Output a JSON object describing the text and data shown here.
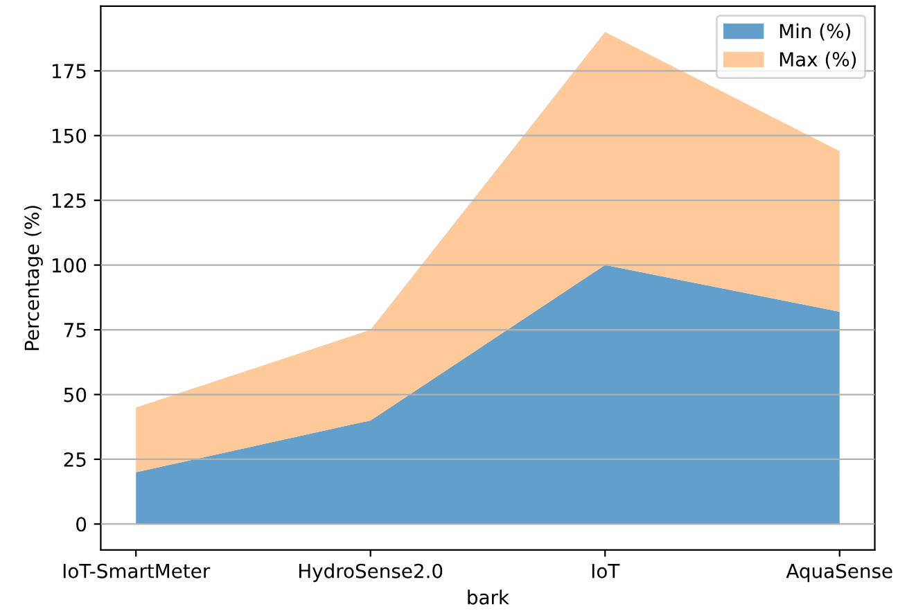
{
  "chart_data": {
    "type": "area",
    "stacked": true,
    "xlabel": "bark",
    "ylabel": "Percentage (%)",
    "categories": [
      "IoT-SmartMeter",
      "HydroSense2.0",
      "IoT",
      "AquaSense"
    ],
    "series": [
      {
        "name": "Min (%)",
        "color": "#62a0cb",
        "values": [
          20,
          40,
          100,
          82
        ]
      },
      {
        "name": "Max (%)",
        "color": "#ffc999",
        "values": [
          25,
          35,
          90,
          62
        ]
      }
    ],
    "ylim": [
      -10,
      200
    ],
    "yticks": [
      0,
      25,
      50,
      75,
      100,
      125,
      150,
      175
    ],
    "grid": "y",
    "legend": "top right"
  }
}
